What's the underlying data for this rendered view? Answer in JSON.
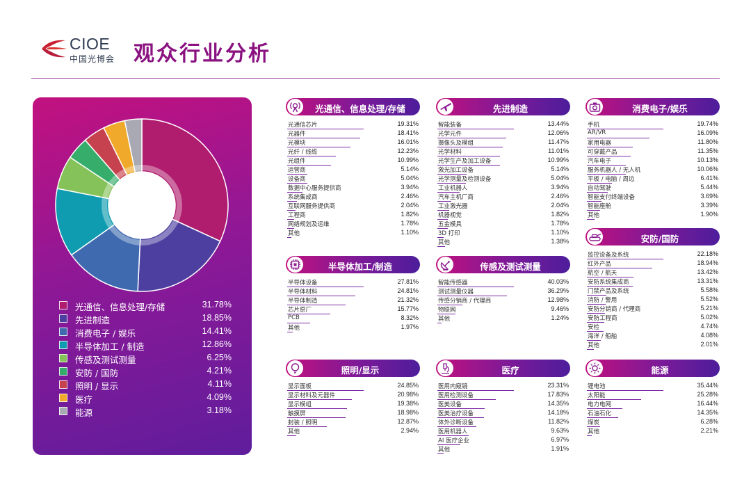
{
  "brand": {
    "name_en": "CIOE",
    "name_cn": "中国光博会"
  },
  "page": {
    "title": "观众行业分析"
  },
  "chart_data": [
    {
      "type": "pie",
      "variant": "donut",
      "title": "",
      "categories": [
        "光通信、信息处理/存储",
        "先进制造",
        "消费电子 / 娱乐",
        "半导体加工 / 制造",
        "传感及测试测量",
        "安防 / 国防",
        "照明 / 显示",
        "医疗",
        "能源"
      ],
      "values": [
        31.78,
        18.85,
        14.41,
        12.86,
        6.25,
        4.21,
        4.11,
        4.09,
        3.18
      ],
      "value_labels": [
        "31.78%",
        "18.85%",
        "14.41%",
        "12.86%",
        "6.25%",
        "4.21%",
        "4.11%",
        "4.09%",
        "3.18%"
      ],
      "colors": [
        "#b01c6e",
        "#4d3fa0",
        "#3f6ab0",
        "#0f9cb0",
        "#86c25a",
        "#36ad6b",
        "#c7424f",
        "#f0a92a",
        "#a9a9b4"
      ],
      "legend_position": "bottom"
    },
    {
      "type": "bar",
      "title": "光通信、信息处理/存储",
      "icon": "satellite-icon",
      "categories": [
        "光通信芯片",
        "光器件",
        "光模块",
        "光纤 / 线缆",
        "光组件",
        "运营商",
        "设备商",
        "数据中心服务提供商",
        "系统集成商",
        "互联网服务提供商",
        "工程商",
        "网络规划及运维",
        "其他"
      ],
      "values": [
        19.31,
        18.41,
        16.01,
        12.23,
        10.99,
        5.14,
        5.04,
        3.94,
        2.46,
        2.04,
        1.82,
        1.78,
        1.1
      ],
      "value_labels": [
        "19.31%",
        "18.41%",
        "16.01%",
        "12.23%",
        "10.99%",
        "5.14%",
        "5.04%",
        "3.94%",
        "2.46%",
        "2.04%",
        "1.82%",
        "1.78%",
        "1.10%"
      ]
    },
    {
      "type": "bar",
      "title": "先进制造",
      "icon": "plane-icon",
      "categories": [
        "智能装备",
        "光学元件",
        "摄像头及模组",
        "光学材料",
        "光学生产及加工设备",
        "激光加工设备",
        "光学测量及检测设备",
        "工业机器人",
        "汽车主机厂商",
        "工业激光器",
        "机器视觉",
        "五金模具",
        "3D 打印",
        "其他"
      ],
      "values": [
        13.44,
        12.06,
        11.47,
        11.01,
        10.99,
        5.14,
        5.04,
        3.94,
        2.46,
        2.04,
        1.82,
        1.78,
        1.1,
        1.38
      ],
      "value_labels": [
        "13.44%",
        "12.06%",
        "11.47%",
        "11.01%",
        "10.99%",
        "5.14%",
        "5.04%",
        "3.94%",
        "2.46%",
        "2.04%",
        "1.82%",
        "1.78%",
        "1.10%",
        "1.38%"
      ]
    },
    {
      "type": "bar",
      "title": "消费电子/娱乐",
      "icon": "camera-icon",
      "categories": [
        "手机",
        "AR/VR",
        "家用电器",
        "可穿戴产品",
        "汽车电子",
        "服务机器人 / 无人机",
        "平板 / 电脑 / 周边",
        "自动驾驶",
        "智能支付终端设备",
        "智能座舱",
        "其他"
      ],
      "values": [
        19.74,
        16.09,
        11.8,
        11.35,
        10.13,
        10.06,
        6.41,
        5.44,
        3.69,
        3.39,
        1.9
      ],
      "value_labels": [
        "19.74%",
        "16.09%",
        "11.80%",
        "11.35%",
        "10.13%",
        "10.06%",
        "6.41%",
        "5.44%",
        "3.69%",
        "3.39%",
        "1.90%"
      ]
    },
    {
      "type": "bar",
      "title": "安防/国防",
      "icon": "tank-icon",
      "categories": [
        "监控设备及系统",
        "红外产品",
        "航空 / 航天",
        "安防系统集成商",
        "门禁产品及系统",
        "消防 / 警用",
        "安防分销商 / 代理商",
        "安防工程商",
        "安检",
        "海洋 / 船舶",
        "其他"
      ],
      "values": [
        22.18,
        18.94,
        13.42,
        13.31,
        5.58,
        5.52,
        5.21,
        5.02,
        4.74,
        4.08,
        2.01
      ],
      "value_labels": [
        "22.18%",
        "18.94%",
        "13.42%",
        "13.31%",
        "5.58%",
        "5.52%",
        "5.21%",
        "5.02%",
        "4.74%",
        "4.08%",
        "2.01%"
      ]
    },
    {
      "type": "bar",
      "title": "半导体加工/制造",
      "icon": "chip-icon",
      "categories": [
        "半导体设备",
        "半导体材料",
        "半导体制造",
        "芯片原厂",
        "PCB",
        "其他"
      ],
      "values": [
        27.81,
        24.81,
        21.32,
        15.77,
        8.32,
        1.97
      ],
      "value_labels": [
        "27.81%",
        "24.81%",
        "21.32%",
        "15.77%",
        "8.32%",
        "1.97%"
      ]
    },
    {
      "type": "bar",
      "title": "传感及测试测量",
      "icon": "satellite-dish-icon",
      "categories": [
        "智能传感器",
        "测试测量仪器",
        "传感分销商 / 代理商",
        "物联网",
        "其他"
      ],
      "values": [
        40.03,
        36.29,
        12.98,
        9.46,
        1.24
      ],
      "value_labels": [
        "40.03%",
        "36.29%",
        "12.98%",
        "9.46%",
        "1.24%"
      ]
    },
    {
      "type": "bar",
      "title": "照明/显示",
      "icon": "bulb-icon",
      "categories": [
        "显示面板",
        "显示材料及元器件",
        "显示模组",
        "触摸屏",
        "封装 / 照明",
        "其他"
      ],
      "values": [
        24.85,
        20.98,
        19.38,
        18.98,
        12.87,
        2.94
      ],
      "value_labels": [
        "24.85%",
        "20.98%",
        "19.38%",
        "18.98%",
        "12.87%",
        "2.94%"
      ]
    },
    {
      "type": "bar",
      "title": "医疗",
      "icon": "microscope-icon",
      "categories": [
        "医用内窥镜",
        "医用检测设备",
        "医美设备",
        "医美治疗设备",
        "体外诊断设备",
        "医用机器人",
        "AI 医疗企业",
        "其他"
      ],
      "values": [
        23.31,
        17.83,
        14.35,
        14.18,
        11.82,
        9.63,
        6.97,
        1.91
      ],
      "value_labels": [
        "23.31%",
        "17.83%",
        "14.35%",
        "14.18%",
        "11.82%",
        "9.63%",
        "6.97%",
        "1.91%"
      ]
    },
    {
      "type": "bar",
      "title": "能源",
      "icon": "sun-icon",
      "categories": [
        "锂电池",
        "太阳能",
        "电力电网",
        "石油石化",
        "煤炭",
        "其他"
      ],
      "values": [
        35.44,
        25.28,
        16.44,
        14.35,
        6.28,
        2.21
      ],
      "value_labels": [
        "35.44%",
        "25.28%",
        "16.44%",
        "14.35%",
        "6.28%",
        "2.21%"
      ]
    }
  ]
}
